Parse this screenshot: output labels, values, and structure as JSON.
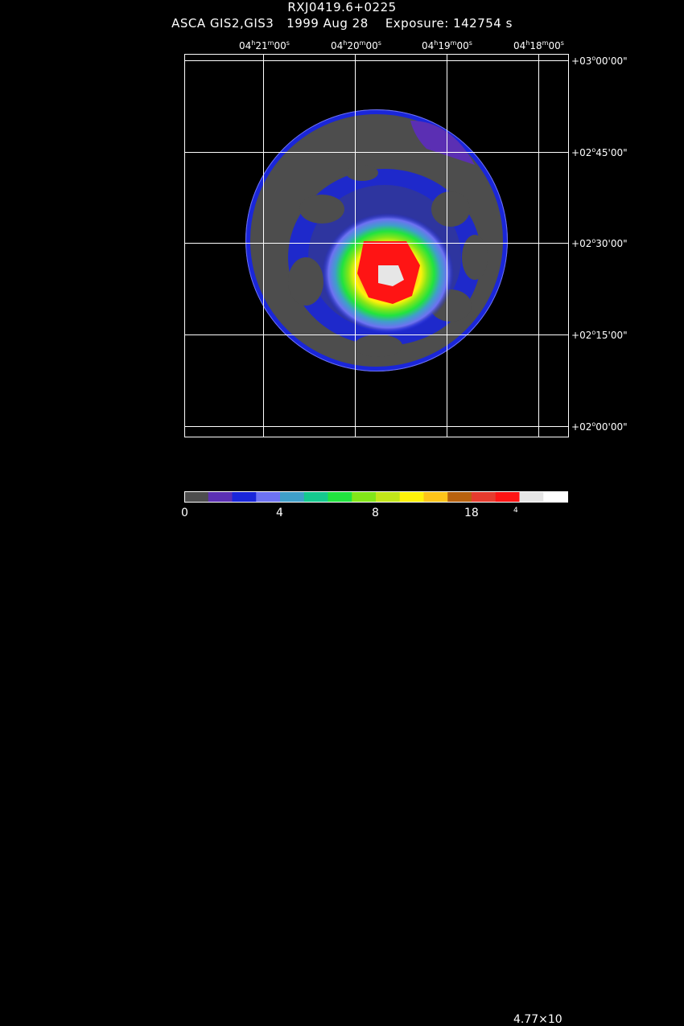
{
  "header": {
    "object": "RXJ0419.6+0225",
    "instrument": "ASCA GIS2,GIS3",
    "date": "1999 Aug 28",
    "exposure": "Exposure: 142754 s"
  },
  "ra_axis": [
    {
      "h": "04",
      "m": "21",
      "s": "00"
    },
    {
      "h": "04",
      "m": "20",
      "s": "00"
    },
    {
      "h": "04",
      "m": "19",
      "s": "00"
    },
    {
      "h": "04",
      "m": "18",
      "s": "00"
    }
  ],
  "dec_axis": [
    {
      "sign": "+",
      "d": "03",
      "m": "00",
      "s": "00"
    },
    {
      "sign": "+",
      "d": "02",
      "m": "45",
      "s": "00"
    },
    {
      "sign": "+",
      "d": "02",
      "m": "30",
      "s": "00"
    },
    {
      "sign": "+",
      "d": "02",
      "m": "15",
      "s": "00"
    },
    {
      "sign": "+",
      "d": "02",
      "m": "00",
      "s": "00"
    }
  ],
  "colorbar": {
    "colors": [
      "#4d4d4d",
      "#5b2fb3",
      "#1a26d9",
      "#6d72f2",
      "#3f9fc9",
      "#15c98e",
      "#21e33f",
      "#82e619",
      "#c2e61a",
      "#fff20a",
      "#fdc41a",
      "#b8620e",
      "#e63b2e",
      "#ff1414",
      "#e6e6e6",
      "#ffffff"
    ],
    "labels": [
      "0",
      "4",
      "8",
      "18"
    ],
    "max_label": "4.77×10",
    "max_exp": "4"
  },
  "image": {
    "palette": {
      "background": "#4d4d4d",
      "edge": "#1a26d9",
      "outer": "#6d72f2",
      "mid": "#3f9fc9",
      "green": "#21e33f",
      "yellow": "#fff20a",
      "orange": "#fdc41a",
      "red": "#ff1414",
      "peak": "#e6e6e6"
    }
  }
}
